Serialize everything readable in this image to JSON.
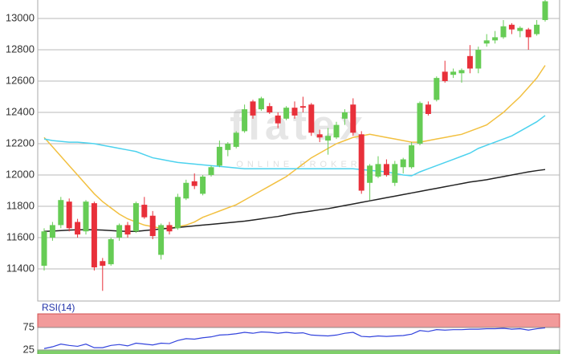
{
  "chart_data": [
    {
      "type": "candlestick",
      "watermark": [
        "flatex",
        "ONLINE BROKER"
      ],
      "open": [
        11420,
        11600,
        11680,
        11830,
        11700,
        11640,
        11820,
        11450,
        11430,
        11600,
        11680,
        11640,
        11810,
        11740,
        11490,
        11680,
        11660,
        11850,
        11960,
        11880,
        12000,
        12060,
        12160,
        12180,
        12280,
        12470,
        12420,
        12440,
        12380,
        12360,
        12430,
        12440,
        12450,
        12260,
        12220,
        12240,
        12360,
        12450,
        12260,
        11950,
        11990,
        12070,
        11950,
        12050,
        12050,
        12200,
        12450,
        12480,
        12660,
        12640,
        12650,
        12760,
        12680,
        12840,
        12860,
        12880,
        12960,
        12920,
        12930,
        12900,
        12990
      ],
      "high": [
        11660,
        11700,
        11860,
        11850,
        11720,
        11840,
        11830,
        11470,
        11600,
        11690,
        11700,
        11830,
        11860,
        11770,
        11690,
        11700,
        11880,
        11970,
        12010,
        12000,
        12060,
        12220,
        12210,
        12280,
        12450,
        12480,
        12500,
        12460,
        12400,
        12440,
        12470,
        12500,
        12460,
        12290,
        12300,
        12340,
        12420,
        12490,
        12280,
        12070,
        12120,
        12100,
        12090,
        12110,
        12210,
        12470,
        12470,
        12630,
        12730,
        12680,
        12680,
        12830,
        12820,
        12900,
        12920,
        12990,
        12970,
        12950,
        12940,
        12990,
        13140
      ],
      "low": [
        11390,
        11580,
        11660,
        11640,
        11600,
        11620,
        11390,
        11260,
        11420,
        11580,
        11600,
        11630,
        11720,
        11590,
        11460,
        11620,
        11650,
        11840,
        11910,
        11870,
        11990,
        12050,
        12120,
        12170,
        12270,
        12360,
        12410,
        12390,
        12300,
        12350,
        12360,
        12400,
        12250,
        12210,
        12130,
        12230,
        12320,
        12250,
        11880,
        11840,
        11980,
        11990,
        11930,
        12010,
        12040,
        12190,
        12380,
        12470,
        12590,
        12620,
        12590,
        12650,
        12650,
        12820,
        12840,
        12870,
        12900,
        12880,
        12800,
        12890,
        12980
      ],
      "close": [
        11640,
        11680,
        11840,
        11660,
        11620,
        11830,
        11410,
        11420,
        11590,
        11680,
        11620,
        11820,
        11730,
        11610,
        11680,
        11640,
        11860,
        11950,
        11930,
        11990,
        12050,
        12180,
        12200,
        12270,
        12420,
        12380,
        12490,
        12400,
        12330,
        12430,
        12380,
        12430,
        12270,
        12240,
        12250,
        12320,
        12400,
        12270,
        11900,
        12060,
        12070,
        12000,
        12070,
        12100,
        12190,
        12460,
        12390,
        12620,
        12600,
        12660,
        12670,
        12680,
        12800,
        12860,
        12880,
        12950,
        12930,
        12940,
        12880,
        12960,
        13110
      ],
      "up_color": "#66cc55",
      "down_color": "#e8303a",
      "overlays": [
        {
          "color": "#f2c040",
          "values": [
            12240,
            12180,
            12120,
            12060,
            12000,
            11940,
            11880,
            11830,
            11790,
            11750,
            11720,
            11700,
            11680,
            11670,
            11660,
            11660,
            11670,
            11680,
            11700,
            11730,
            11750,
            11770,
            11790,
            11810,
            11840,
            11870,
            11900,
            11930,
            11960,
            11990,
            12030,
            12070,
            12110,
            12140,
            12170,
            12200,
            12220,
            12240,
            12250,
            12260,
            12250,
            12240,
            12230,
            12220,
            12210,
            12210,
            12220,
            12230,
            12240,
            12250,
            12260,
            12280,
            12300,
            12320,
            12360,
            12400,
            12450,
            12500,
            12560,
            12620,
            12700
          ]
        },
        {
          "color": "#4cd2ee",
          "values": [
            12230,
            12220,
            12215,
            12210,
            12210,
            12205,
            12200,
            12190,
            12180,
            12170,
            12160,
            12150,
            12130,
            12110,
            12100,
            12090,
            12080,
            12075,
            12070,
            12065,
            12060,
            12055,
            12050,
            12045,
            12040,
            12040,
            12040,
            12040,
            12040,
            12040,
            12040,
            12040,
            12040,
            12040,
            12040,
            12040,
            12040,
            12040,
            12035,
            12030,
            12025,
            12020,
            12010,
            12000,
            11995,
            12020,
            12040,
            12060,
            12080,
            12100,
            12120,
            12140,
            12170,
            12190,
            12210,
            12230,
            12250,
            12280,
            12310,
            12340,
            12380
          ]
        },
        {
          "color": "#222222",
          "values": [
            11640,
            11642,
            11645,
            11648,
            11650,
            11650,
            11650,
            11648,
            11645,
            11642,
            11640,
            11640,
            11645,
            11650,
            11655,
            11660,
            11665,
            11670,
            11675,
            11680,
            11685,
            11690,
            11695,
            11700,
            11705,
            11712,
            11720,
            11728,
            11735,
            11745,
            11755,
            11762,
            11770,
            11778,
            11785,
            11795,
            11805,
            11815,
            11825,
            11835,
            11845,
            11855,
            11865,
            11875,
            11885,
            11895,
            11905,
            11915,
            11925,
            11935,
            11945,
            11955,
            11962,
            11970,
            11980,
            11990,
            12000,
            12010,
            12020,
            12028,
            12035
          ]
        }
      ],
      "ylim": [
        11195,
        13118
      ],
      "yticks": [
        11400,
        11600,
        11800,
        12000,
        12200,
        12400,
        12600,
        12800,
        13000
      ],
      "grid": true
    },
    {
      "type": "line",
      "title": "RSI(14)",
      "series": [
        {
          "color": "#3344dd",
          "values": [
            28,
            32,
            38,
            35,
            33,
            38,
            30,
            30,
            35,
            37,
            34,
            40,
            38,
            36,
            40,
            39,
            46,
            50,
            49,
            52,
            54,
            58,
            59,
            61,
            64,
            62,
            65,
            64,
            62,
            64,
            62,
            63,
            58,
            57,
            56,
            58,
            62,
            64,
            55,
            54,
            56,
            55,
            56,
            57,
            60,
            68,
            66,
            70,
            69,
            70,
            70,
            71,
            71,
            72,
            72,
            73,
            71,
            72,
            69,
            72,
            74
          ]
        }
      ],
      "ylim": [
        16,
        105
      ],
      "yticks": [
        25,
        75
      ],
      "upper_band_color": "#f29a9a",
      "lower_band_color": "#7fcf6a",
      "grid": true
    }
  ]
}
